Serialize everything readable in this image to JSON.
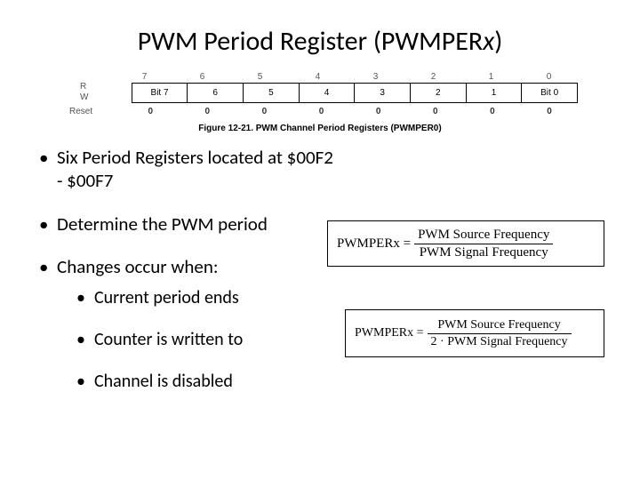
{
  "title_prefix": "PWM Period Register (PWMPER",
  "title_italic": "x",
  "title_suffix": ")",
  "register": {
    "bit_numbers": [
      "7",
      "6",
      "5",
      "4",
      "3",
      "2",
      "1",
      "0"
    ],
    "rw_read": "R",
    "rw_write": "W",
    "bit_labels": [
      "Bit 7",
      "6",
      "5",
      "4",
      "3",
      "2",
      "1",
      "Bit 0"
    ],
    "reset_label": "Reset",
    "reset_values": [
      "0",
      "0",
      "0",
      "0",
      "0",
      "0",
      "0",
      "0"
    ],
    "caption": "Figure 12-21. PWM Channel Period Registers (PWMPER0)"
  },
  "bullets": {
    "b1": "Six Period Registers located at $00F2 - $00F7",
    "b2": "Determine the PWM period",
    "b3": "Changes occur when:",
    "b3a": "Current period ends",
    "b3b": "Counter is written to",
    "b3c": "Channel is disabled"
  },
  "formula1": {
    "lhs": "PWMPERx =",
    "num": "PWM Source Frequency",
    "den": "PWM Signal Frequency"
  },
  "formula2": {
    "lhs": "PWMPERx =",
    "num": "PWM Source Frequency",
    "den": "2 · PWM Signal Frequency"
  }
}
